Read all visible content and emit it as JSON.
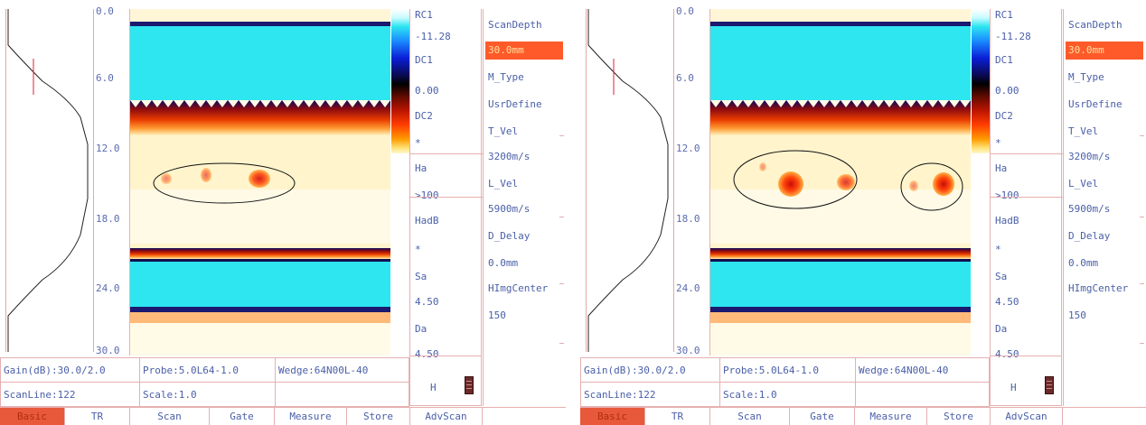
{
  "depth_axis": {
    "ticks": [
      "0.0",
      "6.0",
      "12.0",
      "18.0",
      "24.0",
      "30.0"
    ]
  },
  "colormap": {
    "palette": [
      "#ffffff",
      "#2ee6f0",
      "#0a1fd6",
      "#000000",
      "#b81400",
      "#ff3c00",
      "#ff9a00",
      "#fff8d0"
    ]
  },
  "colors": {
    "accent": "#ff5a2a",
    "text": "#4a5fa8",
    "border": "#e6b0b0",
    "scan_top": "#2ee6f0",
    "scan_flaw": "#e02000"
  },
  "panels": [
    {
      "readout": [
        {
          "label": "RC1"
        },
        {
          "label": "-11.28"
        },
        {
          "label": "DC1"
        },
        {
          "label": "0.00"
        },
        {
          "label": "DC2"
        },
        {
          "label": "*"
        },
        {
          "label": "Ha"
        },
        {
          "label": ">100"
        },
        {
          "label": "HadB"
        },
        {
          "label": "*"
        },
        {
          "label": "Sa"
        },
        {
          "label": "4.50"
        },
        {
          "label": "Da"
        },
        {
          "label": "4.50"
        }
      ],
      "h_label": "H",
      "menu": [
        "ScanDepth",
        "30.0mm",
        "M_Type",
        "UsrDefine",
        "T_Vel",
        "3200m/s",
        "L_Vel",
        "5900m/s",
        "D_Delay",
        "0.0mm",
        "HImgCenter",
        "150"
      ],
      "info": {
        "gain": "Gain(dB):30.0/2.0",
        "probe": "Probe:5.0L64-1.0",
        "wedge": "Wedge:64N00L-40",
        "scanline": "ScanLine:122",
        "scale": "Scale:1.0"
      },
      "tabs": [
        "Basic",
        "TR",
        "Scan",
        "Gate",
        "Measure",
        "Store",
        "AdvScan"
      ],
      "defects": [
        {
          "label": "defect-small",
          "severity": 0.45
        },
        {
          "label": "defect-small",
          "severity": 0.55
        },
        {
          "label": "defect-large",
          "severity": 0.85
        }
      ]
    },
    {
      "readout": [
        {
          "label": "RC1"
        },
        {
          "label": "-11.28"
        },
        {
          "label": "DC1"
        },
        {
          "label": "0.00"
        },
        {
          "label": "DC2"
        },
        {
          "label": "*"
        },
        {
          "label": "Ha"
        },
        {
          "label": ">100"
        },
        {
          "label": "HadB"
        },
        {
          "label": "*"
        },
        {
          "label": "Sa"
        },
        {
          "label": "4.50"
        },
        {
          "label": "Da"
        },
        {
          "label": "4.50"
        }
      ],
      "h_label": "H",
      "menu": [
        "ScanDepth",
        "30.0mm",
        "M_Type",
        "UsrDefine",
        "T_Vel",
        "3200m/s",
        "L_Vel",
        "5900m/s",
        "D_Delay",
        "0.0mm",
        "HImgCenter",
        "150"
      ],
      "info": {
        "gain": "Gain(dB):30.0/2.0",
        "probe": "Probe:5.0L64-1.0",
        "wedge": "Wedge:64N00L-40",
        "scanline": "ScanLine:122",
        "scale": "Scale:1.0"
      },
      "tabs": [
        "Basic",
        "TR",
        "Scan",
        "Gate",
        "Measure",
        "Store",
        "AdvScan"
      ],
      "defects": [
        {
          "label": "defect-small",
          "severity": 0.4
        },
        {
          "label": "defect-large",
          "severity": 0.95
        },
        {
          "label": "defect-medium",
          "severity": 0.75
        },
        {
          "label": "defect-small",
          "severity": 0.45
        },
        {
          "label": "defect-large",
          "severity": 0.95
        }
      ]
    }
  ]
}
